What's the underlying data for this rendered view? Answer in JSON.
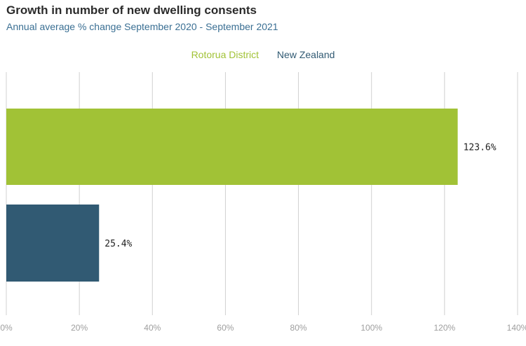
{
  "header": {
    "title": "Growth in number of new dwelling consents",
    "subtitle": "Annual average % change September 2020 - September 2021"
  },
  "colors": {
    "rotorua": "#a1c236",
    "new_zealand": "#315a73",
    "subtitle": "#3a6f93",
    "gridline": "#d0d0d0",
    "tick_label": "#9e9e9e"
  },
  "chart_data": {
    "type": "bar",
    "orientation": "horizontal",
    "title": "Growth in number of new dwelling consents",
    "subtitle": "Annual average % change September 2020 - September 2021",
    "series": [
      {
        "name": "Rotorua District",
        "value": 123.6,
        "label": "123.6%",
        "color": "#a1c236"
      },
      {
        "name": "New Zealand",
        "value": 25.4,
        "label": "25.4%",
        "color": "#315a73"
      }
    ],
    "xlim": [
      0,
      140
    ],
    "ticks": [
      0,
      20,
      40,
      60,
      80,
      100,
      120,
      140
    ],
    "tick_labels": [
      "0%",
      "20%",
      "40%",
      "60%",
      "80%",
      "100%",
      "120%",
      "140%"
    ],
    "grid": true,
    "legend": "top-center"
  }
}
